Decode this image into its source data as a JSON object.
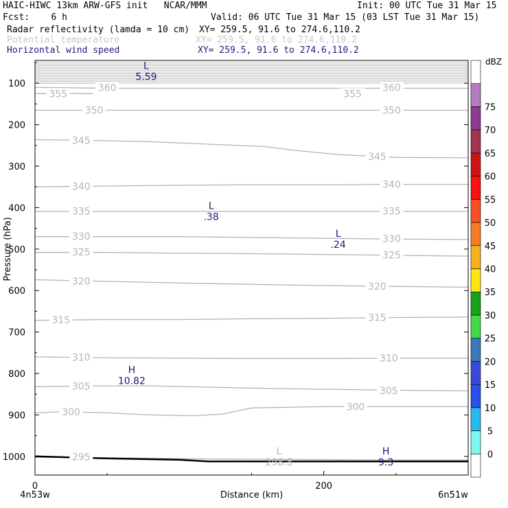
{
  "header": {
    "line1_left": "HAIC-HIWC 13km ARW-GFS init   NCAR/MMM",
    "line1_right": "Init: 00 UTC Tue 31 Mar 15",
    "line2_left": "Fcst:    6 h",
    "line2_right": "Valid: 06 UTC Tue 31 Mar 15 (03 LST Tue 31 Mar 15)",
    "fields": [
      {
        "name": "Radar reflectivity (lamda = 10 cm)",
        "xy": "XY= 259.5, 91.6 to 274.6,110.2",
        "color": "#000000"
      },
      {
        "name": "Potential temperature",
        "xy": "XY= 259.5, 91.6 to 274.6,110.2",
        "color": "#c8c8c8"
      },
      {
        "name": "Horizontal wind speed",
        "xy": "XY= 259.5, 91.6 to 274.6,110.2",
        "color": "#1a1a80"
      }
    ]
  },
  "chart_data": {
    "type": "contour",
    "xlabel": "Distance (km)",
    "ylabel": "Pressure (hPa)",
    "xlim": [
      0,
      300
    ],
    "xticks": [
      {
        "v": 0,
        "label": "0"
      },
      {
        "v": 200,
        "label": "200"
      }
    ],
    "x_endpoint_labels": {
      "left": "4n53w",
      "right": "6n51w"
    },
    "ylim": [
      1045,
      45
    ],
    "yticks": [
      {
        "v": 100,
        "label": "100"
      },
      {
        "v": 200,
        "label": "200"
      },
      {
        "v": 300,
        "label": "300"
      },
      {
        "v": 400,
        "label": "400"
      },
      {
        "v": 500,
        "label": "500"
      },
      {
        "v": 600,
        "label": "600"
      },
      {
        "v": 700,
        "label": "700"
      },
      {
        "v": 800,
        "label": "800"
      },
      {
        "v": 900,
        "label": "900"
      },
      {
        "v": 1000,
        "label": "1000"
      }
    ],
    "theta_contours": [
      {
        "label": "295",
        "pts": [
          [
            0,
            1002
          ],
          [
            30,
            1003
          ],
          [
            60,
            1004
          ],
          [
            110,
            1006
          ],
          [
            160,
            1007
          ],
          [
            210,
            1008
          ],
          [
            260,
            1009
          ],
          [
            300,
            1009
          ]
        ],
        "labels_at": [
          [
            32,
            1001
          ]
        ]
      },
      {
        "label": "300",
        "pts": [
          [
            0,
            895
          ],
          [
            20,
            892
          ],
          [
            50,
            895
          ],
          [
            80,
            900
          ],
          [
            110,
            902
          ],
          [
            130,
            898
          ],
          [
            150,
            883
          ],
          [
            200,
            880
          ],
          [
            250,
            880
          ],
          [
            300,
            880
          ]
        ],
        "labels_at": [
          [
            25,
            893
          ],
          [
            222,
            880
          ]
        ]
      },
      {
        "label": "305",
        "pts": [
          [
            0,
            832
          ],
          [
            40,
            830
          ],
          [
            80,
            830
          ],
          [
            120,
            833
          ],
          [
            160,
            836
          ],
          [
            200,
            838
          ],
          [
            240,
            840
          ],
          [
            300,
            842
          ]
        ],
        "labels_at": [
          [
            32,
            831
          ],
          [
            245,
            841
          ]
        ]
      },
      {
        "label": "310",
        "pts": [
          [
            0,
            760
          ],
          [
            50,
            762
          ],
          [
            100,
            763
          ],
          [
            150,
            764
          ],
          [
            200,
            764
          ],
          [
            250,
            763
          ],
          [
            300,
            763
          ]
        ],
        "labels_at": [
          [
            32,
            761
          ],
          [
            245,
            763
          ]
        ]
      },
      {
        "label": "315",
        "pts": [
          [
            0,
            672
          ],
          [
            50,
            670
          ],
          [
            100,
            670
          ],
          [
            150,
            668
          ],
          [
            200,
            667
          ],
          [
            250,
            665
          ],
          [
            300,
            664
          ]
        ],
        "labels_at": [
          [
            18,
            671
          ],
          [
            237,
            665
          ]
        ]
      },
      {
        "label": "320",
        "pts": [
          [
            0,
            574
          ],
          [
            50,
            578
          ],
          [
            100,
            582
          ],
          [
            150,
            585
          ],
          [
            200,
            588
          ],
          [
            250,
            590
          ],
          [
            300,
            592
          ]
        ],
        "labels_at": [
          [
            32,
            577
          ],
          [
            237,
            590
          ]
        ]
      },
      {
        "label": "325",
        "pts": [
          [
            0,
            508
          ],
          [
            50,
            508
          ],
          [
            100,
            510
          ],
          [
            150,
            511
          ],
          [
            200,
            513
          ],
          [
            250,
            515
          ],
          [
            300,
            517
          ]
        ],
        "labels_at": [
          [
            32,
            507
          ],
          [
            247,
            514
          ]
        ]
      },
      {
        "label": "330",
        "pts": [
          [
            0,
            470
          ],
          [
            50,
            470
          ],
          [
            100,
            470
          ],
          [
            150,
            472
          ],
          [
            200,
            474
          ],
          [
            250,
            476
          ],
          [
            300,
            477
          ]
        ],
        "labels_at": [
          [
            32,
            469
          ],
          [
            247,
            475
          ]
        ]
      },
      {
        "label": "335",
        "pts": [
          [
            0,
            409
          ],
          [
            50,
            409
          ],
          [
            100,
            409
          ],
          [
            150,
            409
          ],
          [
            200,
            409
          ],
          [
            250,
            409
          ],
          [
            300,
            409
          ]
        ],
        "labels_at": [
          [
            32,
            408
          ],
          [
            247,
            408
          ]
        ]
      },
      {
        "label": "340",
        "pts": [
          [
            0,
            350
          ],
          [
            50,
            348
          ],
          [
            100,
            346
          ],
          [
            150,
            345
          ],
          [
            200,
            345
          ],
          [
            250,
            344
          ],
          [
            300,
            344
          ]
        ],
        "labels_at": [
          [
            32,
            349
          ],
          [
            247,
            344
          ]
        ]
      },
      {
        "label": "345",
        "pts": [
          [
            0,
            236
          ],
          [
            40,
            238
          ],
          [
            80,
            241
          ],
          [
            120,
            247
          ],
          [
            160,
            253
          ],
          [
            180,
            262
          ],
          [
            210,
            272
          ],
          [
            250,
            279
          ],
          [
            300,
            280
          ]
        ],
        "labels_at": [
          [
            32,
            238
          ],
          [
            237,
            277
          ]
        ]
      },
      {
        "label": "350",
        "pts": [
          [
            0,
            165
          ],
          [
            50,
            165
          ],
          [
            100,
            165
          ],
          [
            150,
            165
          ],
          [
            200,
            165
          ],
          [
            250,
            165
          ],
          [
            300,
            165
          ]
        ],
        "labels_at": [
          [
            41,
            165
          ],
          [
            247,
            165
          ]
        ]
      },
      {
        "label": "355",
        "pts": [
          [
            0,
            125
          ],
          [
            20,
            125
          ],
          [
            40,
            125
          ]
        ],
        "labels_at": [
          [
            16,
            125
          ],
          [
            220,
            125
          ]
        ]
      },
      {
        "label": "360",
        "pts": [
          [
            0,
            110
          ],
          [
            50,
            112
          ],
          [
            100,
            112
          ],
          [
            150,
            112
          ],
          [
            200,
            112
          ],
          [
            250,
            112
          ],
          [
            300,
            112
          ]
        ],
        "labels_at": [
          [
            50,
            110
          ],
          [
            247,
            110
          ]
        ]
      }
    ],
    "stratosphere_band": {
      "from": 50,
      "to": 100,
      "count": 14
    },
    "extrema": [
      {
        "kind": "L",
        "value": "5.59",
        "x": 77,
        "p": 72,
        "color": "#1a1a80"
      },
      {
        "kind": "L",
        "value": ".38",
        "x": 122,
        "p": 410,
        "color": "#1a1a80"
      },
      {
        "kind": "L",
        "value": ".24",
        "x": 210,
        "p": 477,
        "color": "#1a1a80"
      },
      {
        "kind": "H",
        "value": "10.82",
        "x": 67,
        "p": 806,
        "color": "#1a1a80"
      },
      {
        "kind": "L",
        "value": "298.5",
        "x": 169,
        "p": 1002,
        "color": "#b4b4b4"
      },
      {
        "kind": "H",
        "value": "9.3",
        "x": 243,
        "p": 1002,
        "color": "#1a1a80"
      }
    ],
    "surface": {
      "pts": [
        [
          0,
          1000
        ],
        [
          50,
          1005
        ],
        [
          100,
          1008
        ],
        [
          120,
          1012
        ],
        [
          200,
          1012
        ],
        [
          250,
          1012
        ],
        [
          300,
          1012
        ]
      ]
    },
    "colorbar": {
      "units": "dBZ",
      "levels": [
        "0",
        "5",
        "10",
        "15",
        "20",
        "25",
        "30",
        "35",
        "40",
        "45",
        "50",
        "55",
        "60",
        "65",
        "70",
        "75"
      ],
      "colors": [
        "#ffffff",
        "#7cf7f2",
        "#27b9f0",
        "#2a4ee8",
        "#3b4ad6",
        "#3b79b8",
        "#3fda44",
        "#1ba11b",
        "#fde60b",
        "#f7b11e",
        "#f87c26",
        "#f84e22",
        "#f81111",
        "#cc1616",
        "#a3344f",
        "#8e3a92",
        "#b67cc0",
        "#ffffff"
      ]
    }
  }
}
